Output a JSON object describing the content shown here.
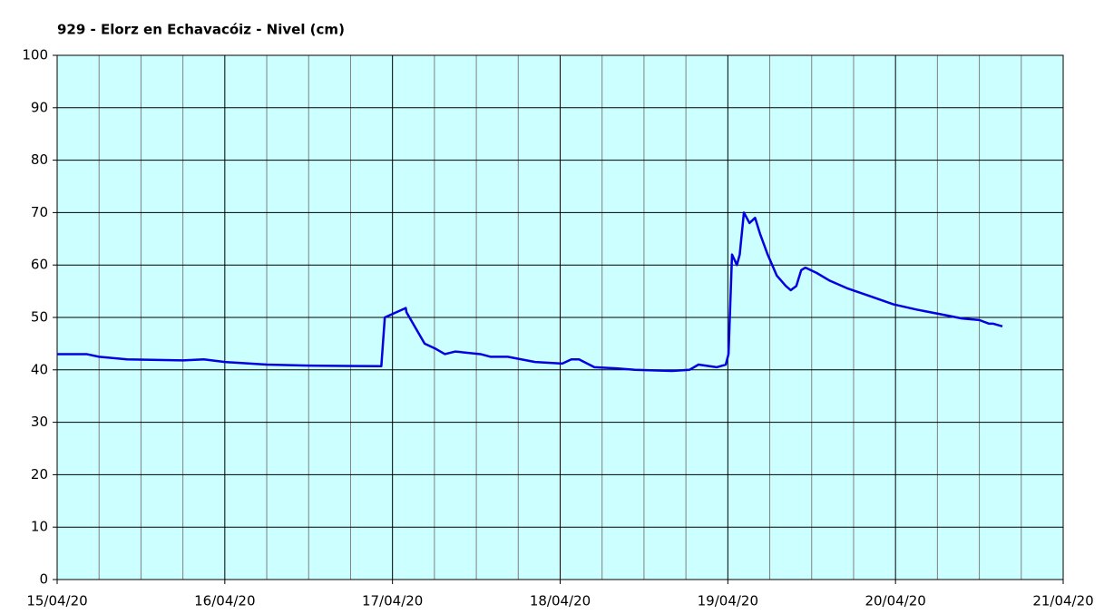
{
  "chart_data": {
    "type": "line",
    "title": "929 - Elorz en Echavacóiz - Nivel (cm)",
    "x": [
      0,
      4.2,
      6,
      10,
      18,
      21,
      24,
      30,
      36,
      46.4,
      46.9,
      49.9,
      50,
      52.6,
      54.2,
      55.5,
      57,
      60.6,
      62,
      64.5,
      68.4,
      72.3,
      73.6,
      74.7,
      76.9,
      80,
      82.7,
      88,
      90.5,
      91.8,
      94.4,
      95.7,
      96.1,
      96.6,
      97.3,
      97.7,
      98.3,
      99.1,
      99.9,
      100.6,
      101.7,
      103,
      104.3,
      105,
      105.8,
      106.5,
      107.1,
      108.7,
      110.6,
      113.2,
      116.5,
      119.7,
      123,
      126.9,
      129.5,
      132,
      133.4,
      134,
      135.3
    ],
    "series": [
      {
        "color": "#0000e0",
        "values": [
          43,
          43,
          42.5,
          42,
          41.8,
          42,
          41.5,
          41,
          40.8,
          40.7,
          50,
          51.8,
          51,
          45,
          44,
          43,
          43.5,
          43,
          42.5,
          42.5,
          41.5,
          41.2,
          42,
          42,
          40.5,
          40.3,
          40,
          39.8,
          40,
          41,
          40.5,
          41,
          43,
          62,
          60,
          62,
          70,
          68,
          69,
          66,
          62,
          58,
          56,
          55.2,
          56,
          59,
          59.5,
          58.5,
          57,
          55.5,
          54,
          52.5,
          51.5,
          50.5,
          49.8,
          49.5,
          48.8,
          48.8,
          48.3
        ]
      }
    ],
    "xlim": [
      0,
      144
    ],
    "xticks": [
      {
        "value": 0,
        "label": "15/04/20"
      },
      {
        "value": 24,
        "label": "16/04/20"
      },
      {
        "value": 48,
        "label": "17/04/20"
      },
      {
        "value": 72,
        "label": "18/04/20"
      },
      {
        "value": 96,
        "label": "19/04/20"
      },
      {
        "value": 120,
        "label": "20/04/20"
      },
      {
        "value": 144,
        "label": "21/04/20"
      }
    ],
    "ylim": [
      0,
      100
    ],
    "yticks": [
      0,
      10,
      20,
      30,
      40,
      50,
      60,
      70,
      80,
      90,
      100
    ],
    "grid": true
  }
}
